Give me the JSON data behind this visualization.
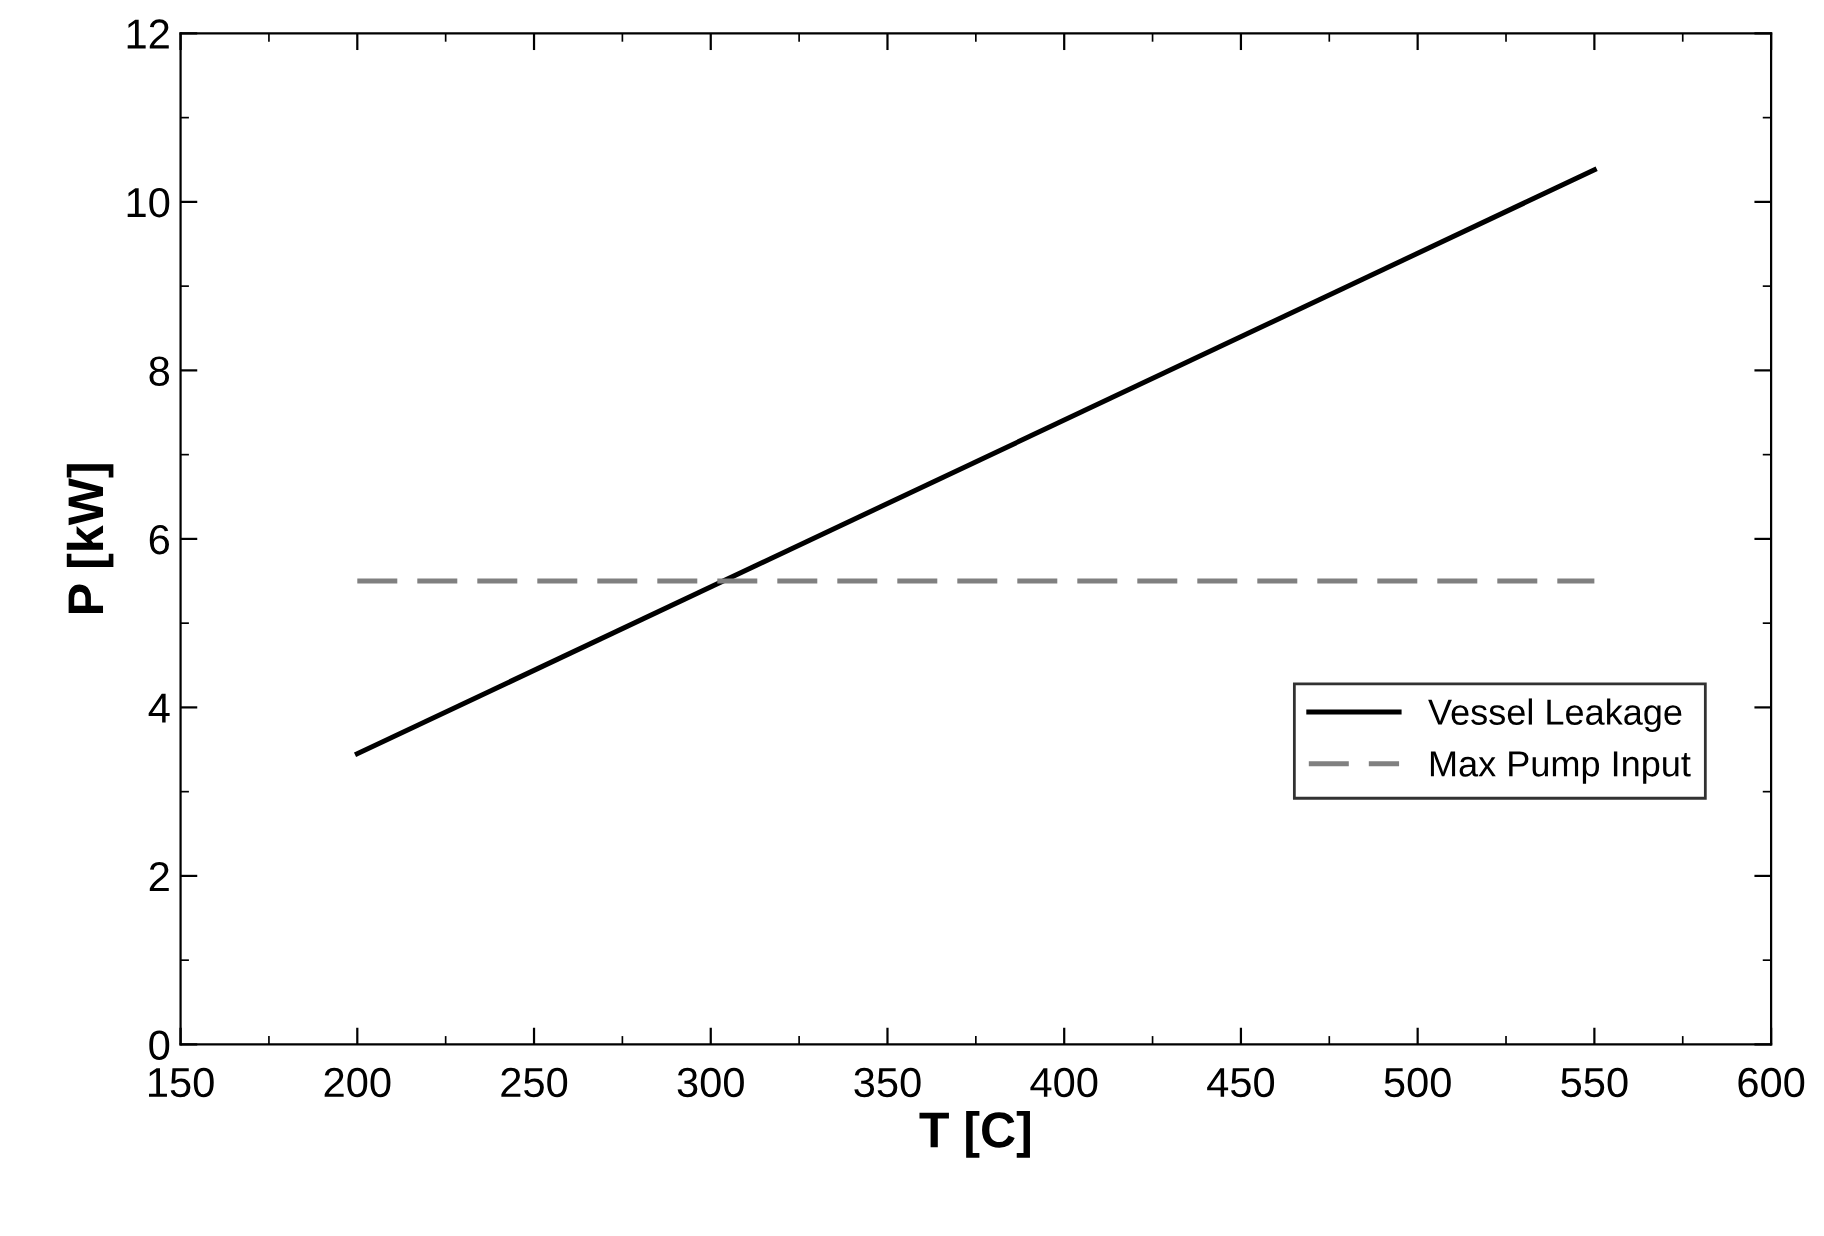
{
  "chart_data": {
    "type": "line",
    "xlabel": "T [C]",
    "ylabel": "P [kW]",
    "xlim": [
      150,
      600
    ],
    "xticks": [
      150,
      200,
      250,
      300,
      350,
      400,
      450,
      500,
      550,
      600
    ],
    "ylim": [
      0,
      12
    ],
    "yticks": [
      0,
      2,
      4,
      6,
      8,
      10,
      12
    ],
    "x": [
      200,
      550
    ],
    "series": [
      {
        "name": "Vessel Leakage",
        "color": "#000000",
        "values": [
          3.45,
          10.38
        ],
        "line_style": "solid"
      },
      {
        "name": "Max Pump Input",
        "color": "#808080",
        "values": [
          5.5,
          5.5
        ],
        "line_style": "dashed"
      }
    ],
    "legend": "right",
    "grid": false,
    "marker": "none"
  }
}
